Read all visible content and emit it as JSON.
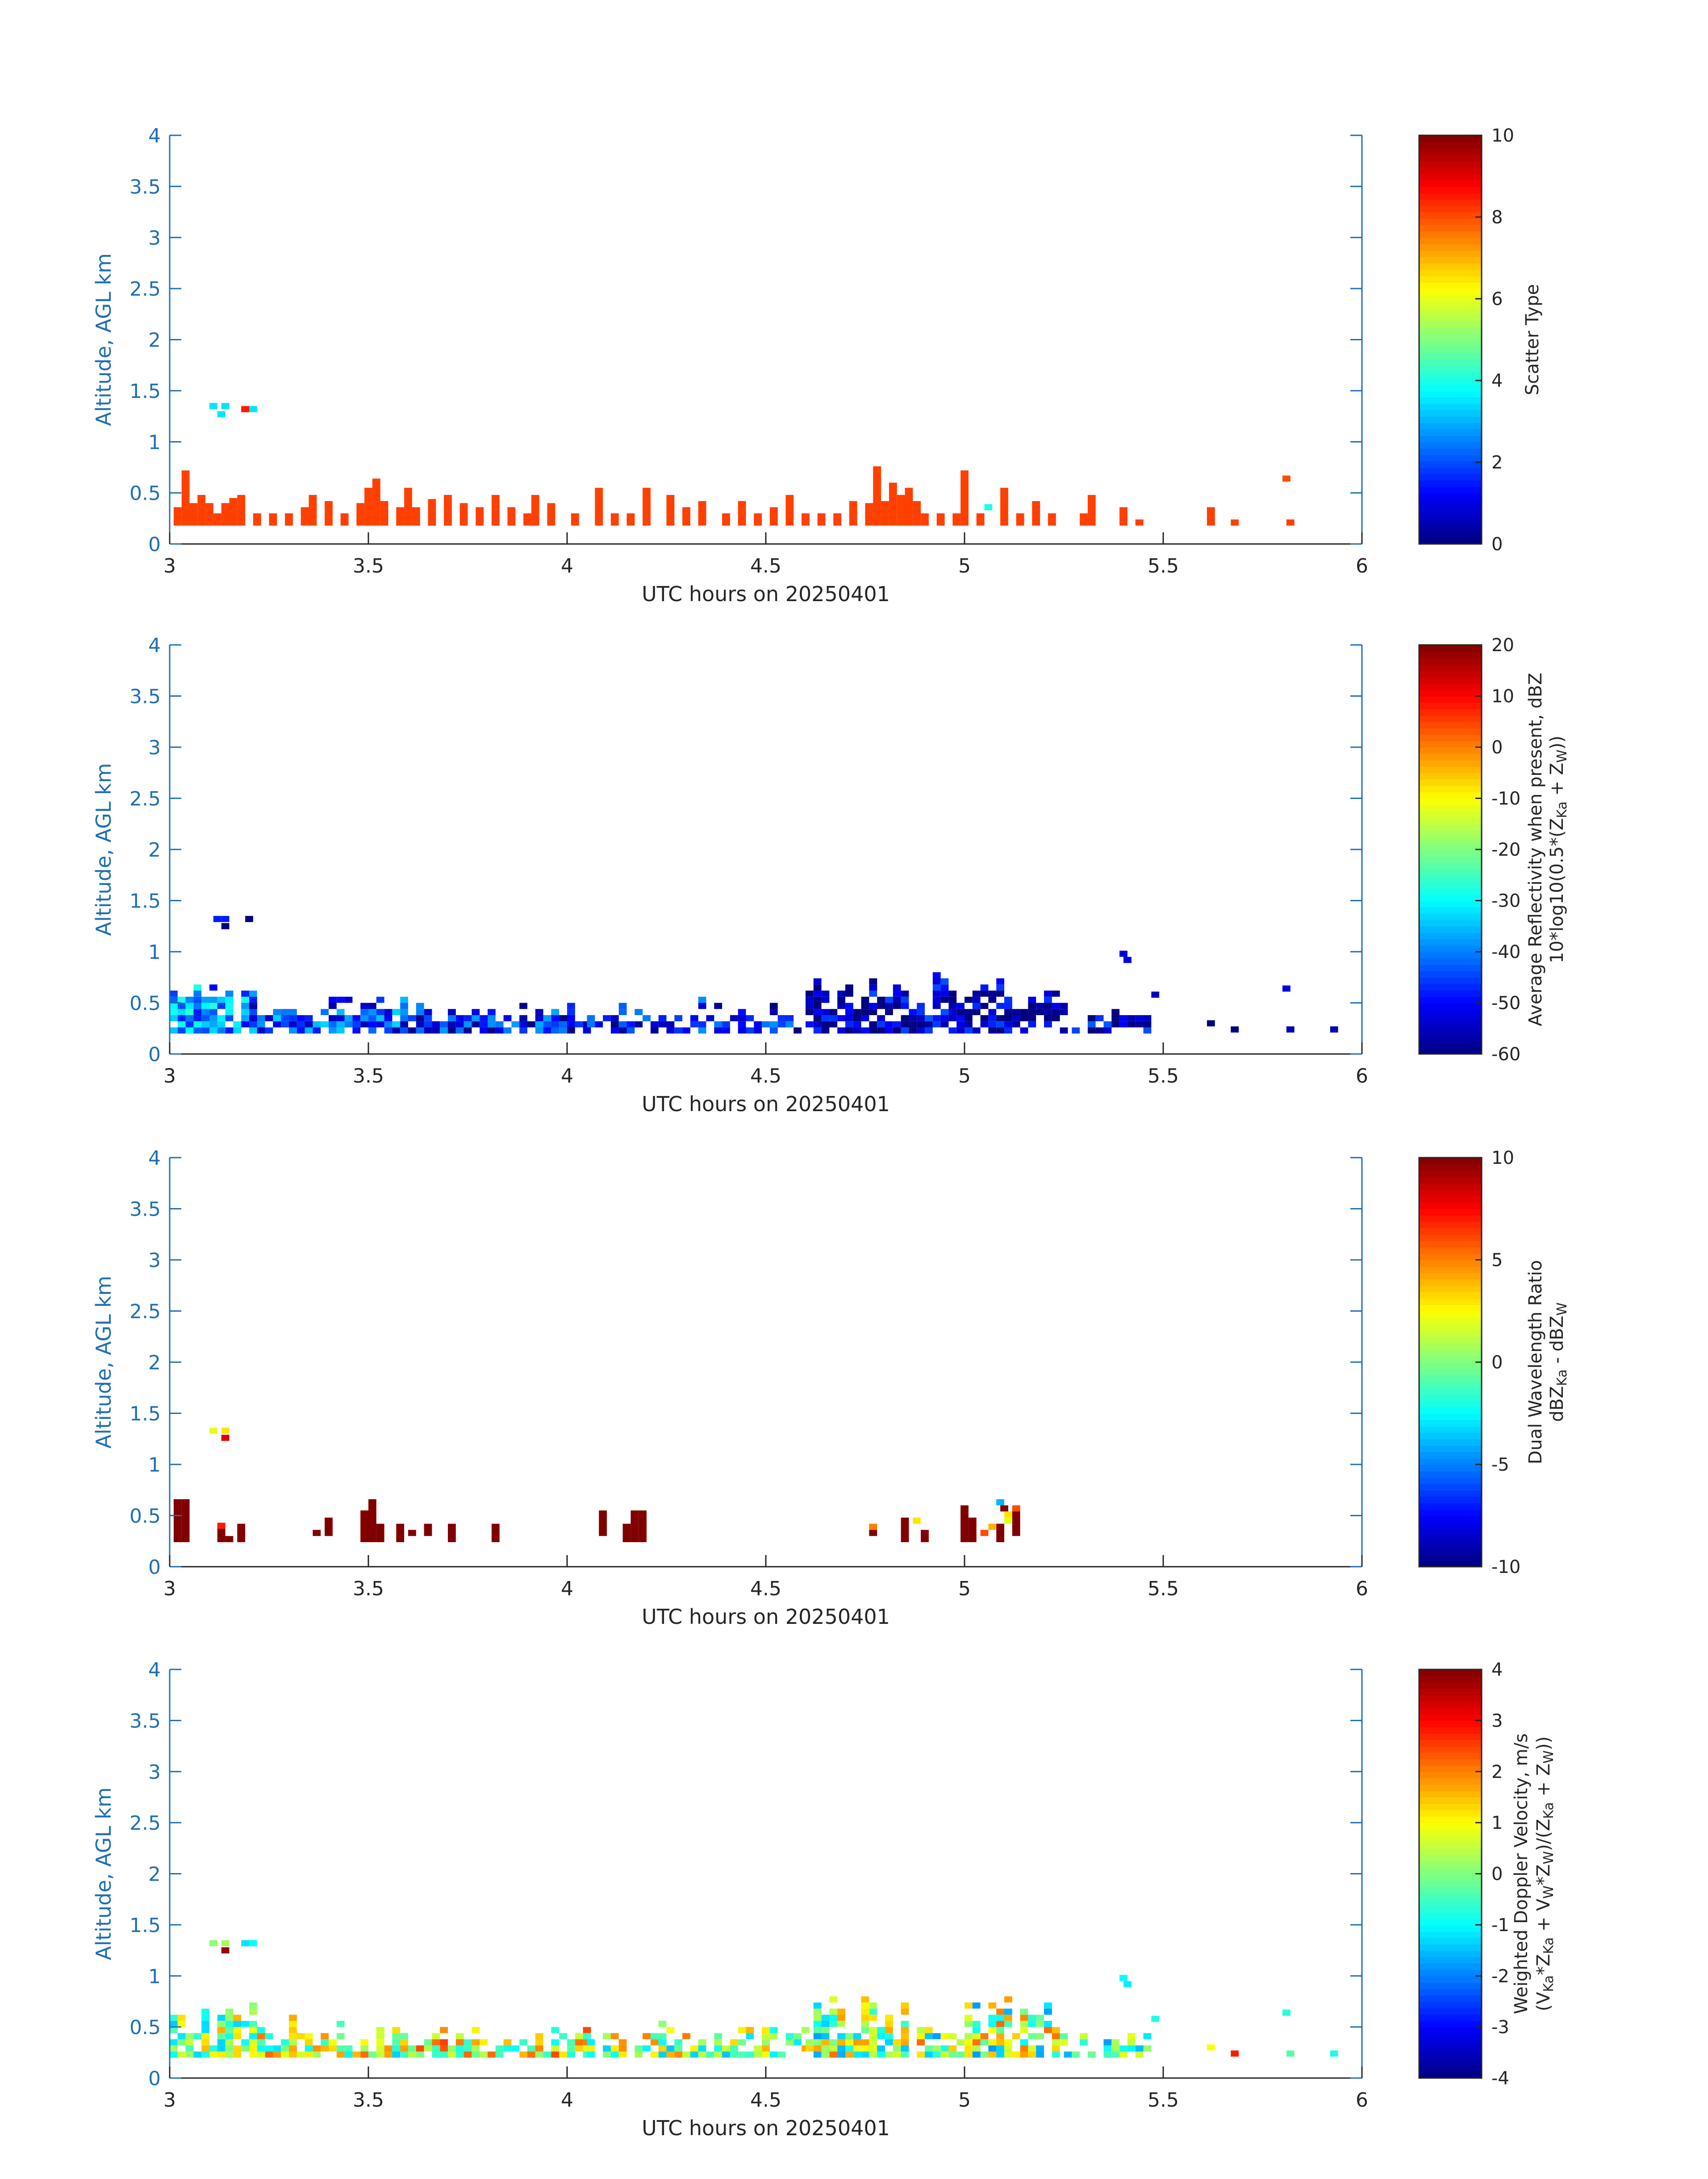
{
  "figure": {
    "xlabel": "UTC hours on 20250401",
    "ylabel": "Altitude, AGL km"
  },
  "colors": {
    "axis_blue": "#1f6fb4",
    "text_dark": "#262626",
    "scatter_fill": "#ff4000"
  },
  "chart_data": [
    {
      "type": "heatmap",
      "name": "scatter-type-panel",
      "xlabel": "UTC hours on 20250401",
      "ylabel": "Altitude, AGL km",
      "xlim": [
        3,
        6
      ],
      "ylim": [
        0,
        4
      ],
      "xticks": [
        3,
        3.5,
        4,
        4.5,
        5,
        5.5,
        6
      ],
      "yticks": [
        0,
        0.5,
        1,
        1.5,
        2,
        2.5,
        3,
        3.5,
        4
      ],
      "colorbar": {
        "label_lines": [
          "Scatter Type"
        ],
        "ticks": [
          0,
          2,
          4,
          6,
          8,
          10
        ],
        "range": [
          0,
          10
        ]
      },
      "cell_height_km": 0.0625,
      "columns": [
        {
          "x": 3.02,
          "top": 0.36
        },
        {
          "x": 3.04,
          "top": 0.72
        },
        {
          "x": 3.06,
          "top": 0.4
        },
        {
          "x": 3.08,
          "top": 0.48
        },
        {
          "x": 3.1,
          "top": 0.4
        },
        {
          "x": 3.12,
          "top": 0.3
        },
        {
          "x": 3.14,
          "top": 0.4
        },
        {
          "x": 3.16,
          "top": 0.45
        },
        {
          "x": 3.18,
          "top": 0.48
        },
        {
          "x": 3.22,
          "top": 0.3
        },
        {
          "x": 3.26,
          "top": 0.3
        },
        {
          "x": 3.3,
          "top": 0.3
        },
        {
          "x": 3.34,
          "top": 0.36
        },
        {
          "x": 3.36,
          "top": 0.48
        },
        {
          "x": 3.4,
          "top": 0.42
        },
        {
          "x": 3.44,
          "top": 0.3
        },
        {
          "x": 3.48,
          "top": 0.4
        },
        {
          "x": 3.5,
          "top": 0.55
        },
        {
          "x": 3.52,
          "top": 0.64
        },
        {
          "x": 3.54,
          "top": 0.42
        },
        {
          "x": 3.58,
          "top": 0.36
        },
        {
          "x": 3.6,
          "top": 0.55
        },
        {
          "x": 3.62,
          "top": 0.36
        },
        {
          "x": 3.66,
          "top": 0.44
        },
        {
          "x": 3.7,
          "top": 0.48
        },
        {
          "x": 3.74,
          "top": 0.4
        },
        {
          "x": 3.78,
          "top": 0.36
        },
        {
          "x": 3.82,
          "top": 0.48
        },
        {
          "x": 3.86,
          "top": 0.36
        },
        {
          "x": 3.9,
          "top": 0.3
        },
        {
          "x": 3.92,
          "top": 0.48
        },
        {
          "x": 3.96,
          "top": 0.4
        },
        {
          "x": 4.02,
          "top": 0.3
        },
        {
          "x": 4.08,
          "top": 0.55
        },
        {
          "x": 4.12,
          "top": 0.3
        },
        {
          "x": 4.16,
          "top": 0.3
        },
        {
          "x": 4.2,
          "top": 0.55
        },
        {
          "x": 4.26,
          "top": 0.48
        },
        {
          "x": 4.3,
          "top": 0.36
        },
        {
          "x": 4.34,
          "top": 0.42
        },
        {
          "x": 4.4,
          "top": 0.3
        },
        {
          "x": 4.44,
          "top": 0.42
        },
        {
          "x": 4.48,
          "top": 0.3
        },
        {
          "x": 4.52,
          "top": 0.36
        },
        {
          "x": 4.56,
          "top": 0.48
        },
        {
          "x": 4.6,
          "top": 0.3
        },
        {
          "x": 4.64,
          "top": 0.3
        },
        {
          "x": 4.68,
          "top": 0.3
        },
        {
          "x": 4.72,
          "top": 0.42
        },
        {
          "x": 4.76,
          "top": 0.4
        },
        {
          "x": 4.78,
          "top": 0.76
        },
        {
          "x": 4.8,
          "top": 0.42
        },
        {
          "x": 4.82,
          "top": 0.6
        },
        {
          "x": 4.84,
          "top": 0.48
        },
        {
          "x": 4.86,
          "top": 0.55
        },
        {
          "x": 4.88,
          "top": 0.42
        },
        {
          "x": 4.9,
          "top": 0.3
        },
        {
          "x": 4.94,
          "top": 0.3
        },
        {
          "x": 4.98,
          "top": 0.3
        },
        {
          "x": 5.0,
          "top": 0.72
        },
        {
          "x": 5.04,
          "top": 0.3
        },
        {
          "x": 5.1,
          "top": 0.55
        },
        {
          "x": 5.14,
          "top": 0.3
        },
        {
          "x": 5.18,
          "top": 0.42
        },
        {
          "x": 5.22,
          "top": 0.3
        },
        {
          "x": 5.3,
          "top": 0.3
        },
        {
          "x": 5.32,
          "top": 0.48
        },
        {
          "x": 5.4,
          "top": 0.36
        },
        {
          "x": 5.44,
          "top": 0.24
        },
        {
          "x": 5.62,
          "top": 0.36
        },
        {
          "x": 5.68,
          "top": 0.24
        },
        {
          "x": 5.82,
          "top": 0.24
        }
      ],
      "cells": [
        {
          "x": 3.11,
          "y": 1.35,
          "value": 3.5
        },
        {
          "x": 3.14,
          "y": 1.35,
          "value": 3.5
        },
        {
          "x": 3.13,
          "y": 1.27,
          "value": 3.5
        },
        {
          "x": 3.19,
          "y": 1.32,
          "value": 8.5
        },
        {
          "x": 3.21,
          "y": 1.32,
          "value": 3.5
        },
        {
          "x": 5.06,
          "y": 0.36,
          "value": 4
        },
        {
          "x": 5.81,
          "y": 0.64,
          "value": 8
        }
      ]
    },
    {
      "type": "heatmap",
      "name": "reflectivity-panel",
      "xlabel": "UTC hours on 20250401",
      "ylabel": "Altitude, AGL km",
      "xlim": [
        3,
        6
      ],
      "ylim": [
        0,
        4
      ],
      "xticks": [
        3,
        3.5,
        4,
        4.5,
        5,
        5.5,
        6
      ],
      "yticks": [
        0,
        0.5,
        1,
        1.5,
        2,
        2.5,
        3,
        3.5,
        4
      ],
      "colorbar": {
        "label_lines": [
          "Average Reflectivity when present, dBZ",
          "10*log10(0.5*(Z",
          "Ka",
          " + Z",
          "W",
          "))"
        ],
        "ticks": [
          -60,
          -50,
          -40,
          -30,
          -20,
          -10,
          0,
          10,
          20
        ],
        "range": [
          -60,
          20
        ]
      },
      "regions": [
        {
          "x0": 3.0,
          "x1": 3.22,
          "y0": 0.2,
          "y1": 0.75,
          "value": -38,
          "density": 0.85
        },
        {
          "x0": 3.2,
          "x1": 3.6,
          "y0": 0.2,
          "y1": 0.6,
          "value": -45,
          "density": 0.75
        },
        {
          "x0": 3.58,
          "x1": 4.05,
          "y0": 0.2,
          "y1": 0.5,
          "value": -48,
          "density": 0.8
        },
        {
          "x0": 4.05,
          "x1": 4.6,
          "y0": 0.2,
          "y1": 0.55,
          "value": -50,
          "density": 0.7
        },
        {
          "x0": 4.6,
          "x1": 5.25,
          "y0": 0.2,
          "y1": 0.8,
          "value": -55,
          "density": 0.75
        },
        {
          "x0": 5.25,
          "x1": 5.45,
          "y0": 0.2,
          "y1": 0.45,
          "value": -54,
          "density": 0.7
        }
      ],
      "cells": [
        {
          "x": 3.12,
          "y": 1.32,
          "value": -48
        },
        {
          "x": 3.14,
          "y": 1.32,
          "value": -48
        },
        {
          "x": 3.14,
          "y": 1.25,
          "value": -60
        },
        {
          "x": 3.2,
          "y": 1.32,
          "value": -60
        },
        {
          "x": 5.4,
          "y": 0.98,
          "value": -52
        },
        {
          "x": 5.41,
          "y": 0.92,
          "value": -52
        },
        {
          "x": 5.48,
          "y": 0.58,
          "value": -55
        },
        {
          "x": 5.62,
          "y": 0.3,
          "value": -60
        },
        {
          "x": 5.68,
          "y": 0.24,
          "value": -60
        },
        {
          "x": 5.81,
          "y": 0.64,
          "value": -52
        },
        {
          "x": 5.82,
          "y": 0.24,
          "value": -56
        },
        {
          "x": 5.93,
          "y": 0.24,
          "value": -56
        }
      ]
    },
    {
      "type": "heatmap",
      "name": "dual-wavelength-ratio-panel",
      "xlabel": "UTC hours on 20250401",
      "ylabel": "Altitude, AGL km",
      "xlim": [
        3,
        6
      ],
      "ylim": [
        0,
        4
      ],
      "xticks": [
        3,
        3.5,
        4,
        4.5,
        5,
        5.5,
        6
      ],
      "yticks": [
        0,
        0.5,
        1,
        1.5,
        2,
        2.5,
        3,
        3.5,
        4
      ],
      "colorbar": {
        "label_lines": [
          "Dual Wavelength Ratio",
          "dBZ",
          "Ka",
          " - dBZ",
          "W"
        ],
        "ticks": [
          -10,
          -5,
          0,
          5,
          10
        ],
        "range": [
          -10,
          10
        ]
      },
      "columns": [
        {
          "x": 3.02,
          "y0": 0.24,
          "y1": 0.66
        },
        {
          "x": 3.04,
          "y0": 0.24,
          "y1": 0.66
        },
        {
          "x": 3.13,
          "y0": 0.24,
          "y1": 0.42
        },
        {
          "x": 3.15,
          "y0": 0.24,
          "y1": 0.3
        },
        {
          "x": 3.18,
          "y0": 0.24,
          "y1": 0.42
        },
        {
          "x": 3.37,
          "y0": 0.3,
          "y1": 0.36
        },
        {
          "x": 3.4,
          "y0": 0.3,
          "y1": 0.48
        },
        {
          "x": 3.49,
          "y0": 0.24,
          "y1": 0.55
        },
        {
          "x": 3.51,
          "y0": 0.24,
          "y1": 0.66
        },
        {
          "x": 3.53,
          "y0": 0.24,
          "y1": 0.42
        },
        {
          "x": 3.58,
          "y0": 0.24,
          "y1": 0.42
        },
        {
          "x": 3.61,
          "y0": 0.3,
          "y1": 0.36
        },
        {
          "x": 3.65,
          "y0": 0.3,
          "y1": 0.42
        },
        {
          "x": 3.71,
          "y0": 0.24,
          "y1": 0.42
        },
        {
          "x": 3.82,
          "y0": 0.24,
          "y1": 0.42
        },
        {
          "x": 4.09,
          "y0": 0.3,
          "y1": 0.55
        },
        {
          "x": 4.15,
          "y0": 0.24,
          "y1": 0.42
        },
        {
          "x": 4.17,
          "y0": 0.24,
          "y1": 0.55
        },
        {
          "x": 4.19,
          "y0": 0.24,
          "y1": 0.55
        },
        {
          "x": 4.85,
          "y0": 0.24,
          "y1": 0.48
        },
        {
          "x": 4.9,
          "y0": 0.24,
          "y1": 0.36
        },
        {
          "x": 5.0,
          "y0": 0.24,
          "y1": 0.6
        },
        {
          "x": 5.02,
          "y0": 0.24,
          "y1": 0.48
        },
        {
          "x": 5.09,
          "y0": 0.24,
          "y1": 0.42
        },
        {
          "x": 5.13,
          "y0": 0.3,
          "y1": 0.55
        }
      ],
      "column_value": 10,
      "cells": [
        {
          "x": 3.11,
          "y": 1.33,
          "value": 2
        },
        {
          "x": 3.14,
          "y": 1.33,
          "value": 3
        },
        {
          "x": 3.14,
          "y": 1.26,
          "value": 8
        },
        {
          "x": 3.13,
          "y": 0.4,
          "value": 7
        },
        {
          "x": 4.77,
          "y": 0.39,
          "value": 5
        },
        {
          "x": 4.77,
          "y": 0.33,
          "value": 10
        },
        {
          "x": 4.88,
          "y": 0.45,
          "value": 3
        },
        {
          "x": 5.05,
          "y": 0.33,
          "value": 6
        },
        {
          "x": 5.07,
          "y": 0.39,
          "value": 4
        },
        {
          "x": 5.09,
          "y": 0.63,
          "value": -4
        },
        {
          "x": 5.1,
          "y": 0.57,
          "value": 10
        },
        {
          "x": 5.11,
          "y": 0.51,
          "value": 3
        },
        {
          "x": 5.11,
          "y": 0.45,
          "value": 2
        },
        {
          "x": 5.13,
          "y": 0.57,
          "value": 6
        }
      ]
    },
    {
      "type": "heatmap",
      "name": "doppler-velocity-panel",
      "xlabel": "UTC hours on 20250401",
      "ylabel": "Altitude, AGL km",
      "xlim": [
        3,
        6
      ],
      "ylim": [
        0,
        4
      ],
      "xticks": [
        3,
        3.5,
        4,
        4.5,
        5,
        5.5,
        6
      ],
      "yticks": [
        0,
        0.5,
        1,
        1.5,
        2,
        2.5,
        3,
        3.5,
        4
      ],
      "colorbar": {
        "label_lines": [
          "Weighted Doppler Velocity, m/s",
          "(V",
          "Ka",
          "*Z",
          "Ka",
          " + V",
          "W",
          "*Z",
          "W",
          ")/(Z",
          "Ka",
          " + Z",
          "W",
          "))"
        ],
        "ticks": [
          -4,
          -3,
          -2,
          -1,
          0,
          1,
          2,
          3,
          4
        ],
        "range": [
          -4,
          4
        ]
      },
      "regions": [
        {
          "x0": 3.0,
          "x1": 3.22,
          "y0": 0.2,
          "y1": 0.75,
          "value": 0.2,
          "spread": 1.6,
          "density": 0.85
        },
        {
          "x0": 3.2,
          "x1": 3.6,
          "y0": 0.2,
          "y1": 0.6,
          "value": 0.4,
          "spread": 1.8,
          "density": 0.75
        },
        {
          "x0": 3.58,
          "x1": 4.05,
          "y0": 0.2,
          "y1": 0.5,
          "value": 0.8,
          "spread": 1.8,
          "density": 0.8
        },
        {
          "x0": 4.05,
          "x1": 4.6,
          "y0": 0.2,
          "y1": 0.55,
          "value": 0.3,
          "spread": 1.8,
          "density": 0.7
        },
        {
          "x0": 4.6,
          "x1": 5.25,
          "y0": 0.2,
          "y1": 0.8,
          "value": 0.2,
          "spread": 2.0,
          "density": 0.75
        },
        {
          "x0": 5.25,
          "x1": 5.45,
          "y0": 0.2,
          "y1": 0.45,
          "value": -0.5,
          "spread": 1.4,
          "density": 0.7
        }
      ],
      "cells": [
        {
          "x": 3.11,
          "y": 1.32,
          "value": 0.1
        },
        {
          "x": 3.14,
          "y": 1.32,
          "value": 0.3
        },
        {
          "x": 3.14,
          "y": 1.25,
          "value": 3.8
        },
        {
          "x": 3.19,
          "y": 1.32,
          "value": -1.2
        },
        {
          "x": 3.21,
          "y": 1.32,
          "value": -1.0
        },
        {
          "x": 5.4,
          "y": 0.98,
          "value": -1.0
        },
        {
          "x": 5.41,
          "y": 0.92,
          "value": -1.1
        },
        {
          "x": 5.48,
          "y": 0.58,
          "value": -0.8
        },
        {
          "x": 5.62,
          "y": 0.3,
          "value": 1.0
        },
        {
          "x": 5.68,
          "y": 0.24,
          "value": 2.8
        },
        {
          "x": 5.81,
          "y": 0.64,
          "value": -0.7
        },
        {
          "x": 5.82,
          "y": 0.24,
          "value": -0.3
        },
        {
          "x": 5.93,
          "y": 0.24,
          "value": -0.8
        }
      ]
    }
  ]
}
